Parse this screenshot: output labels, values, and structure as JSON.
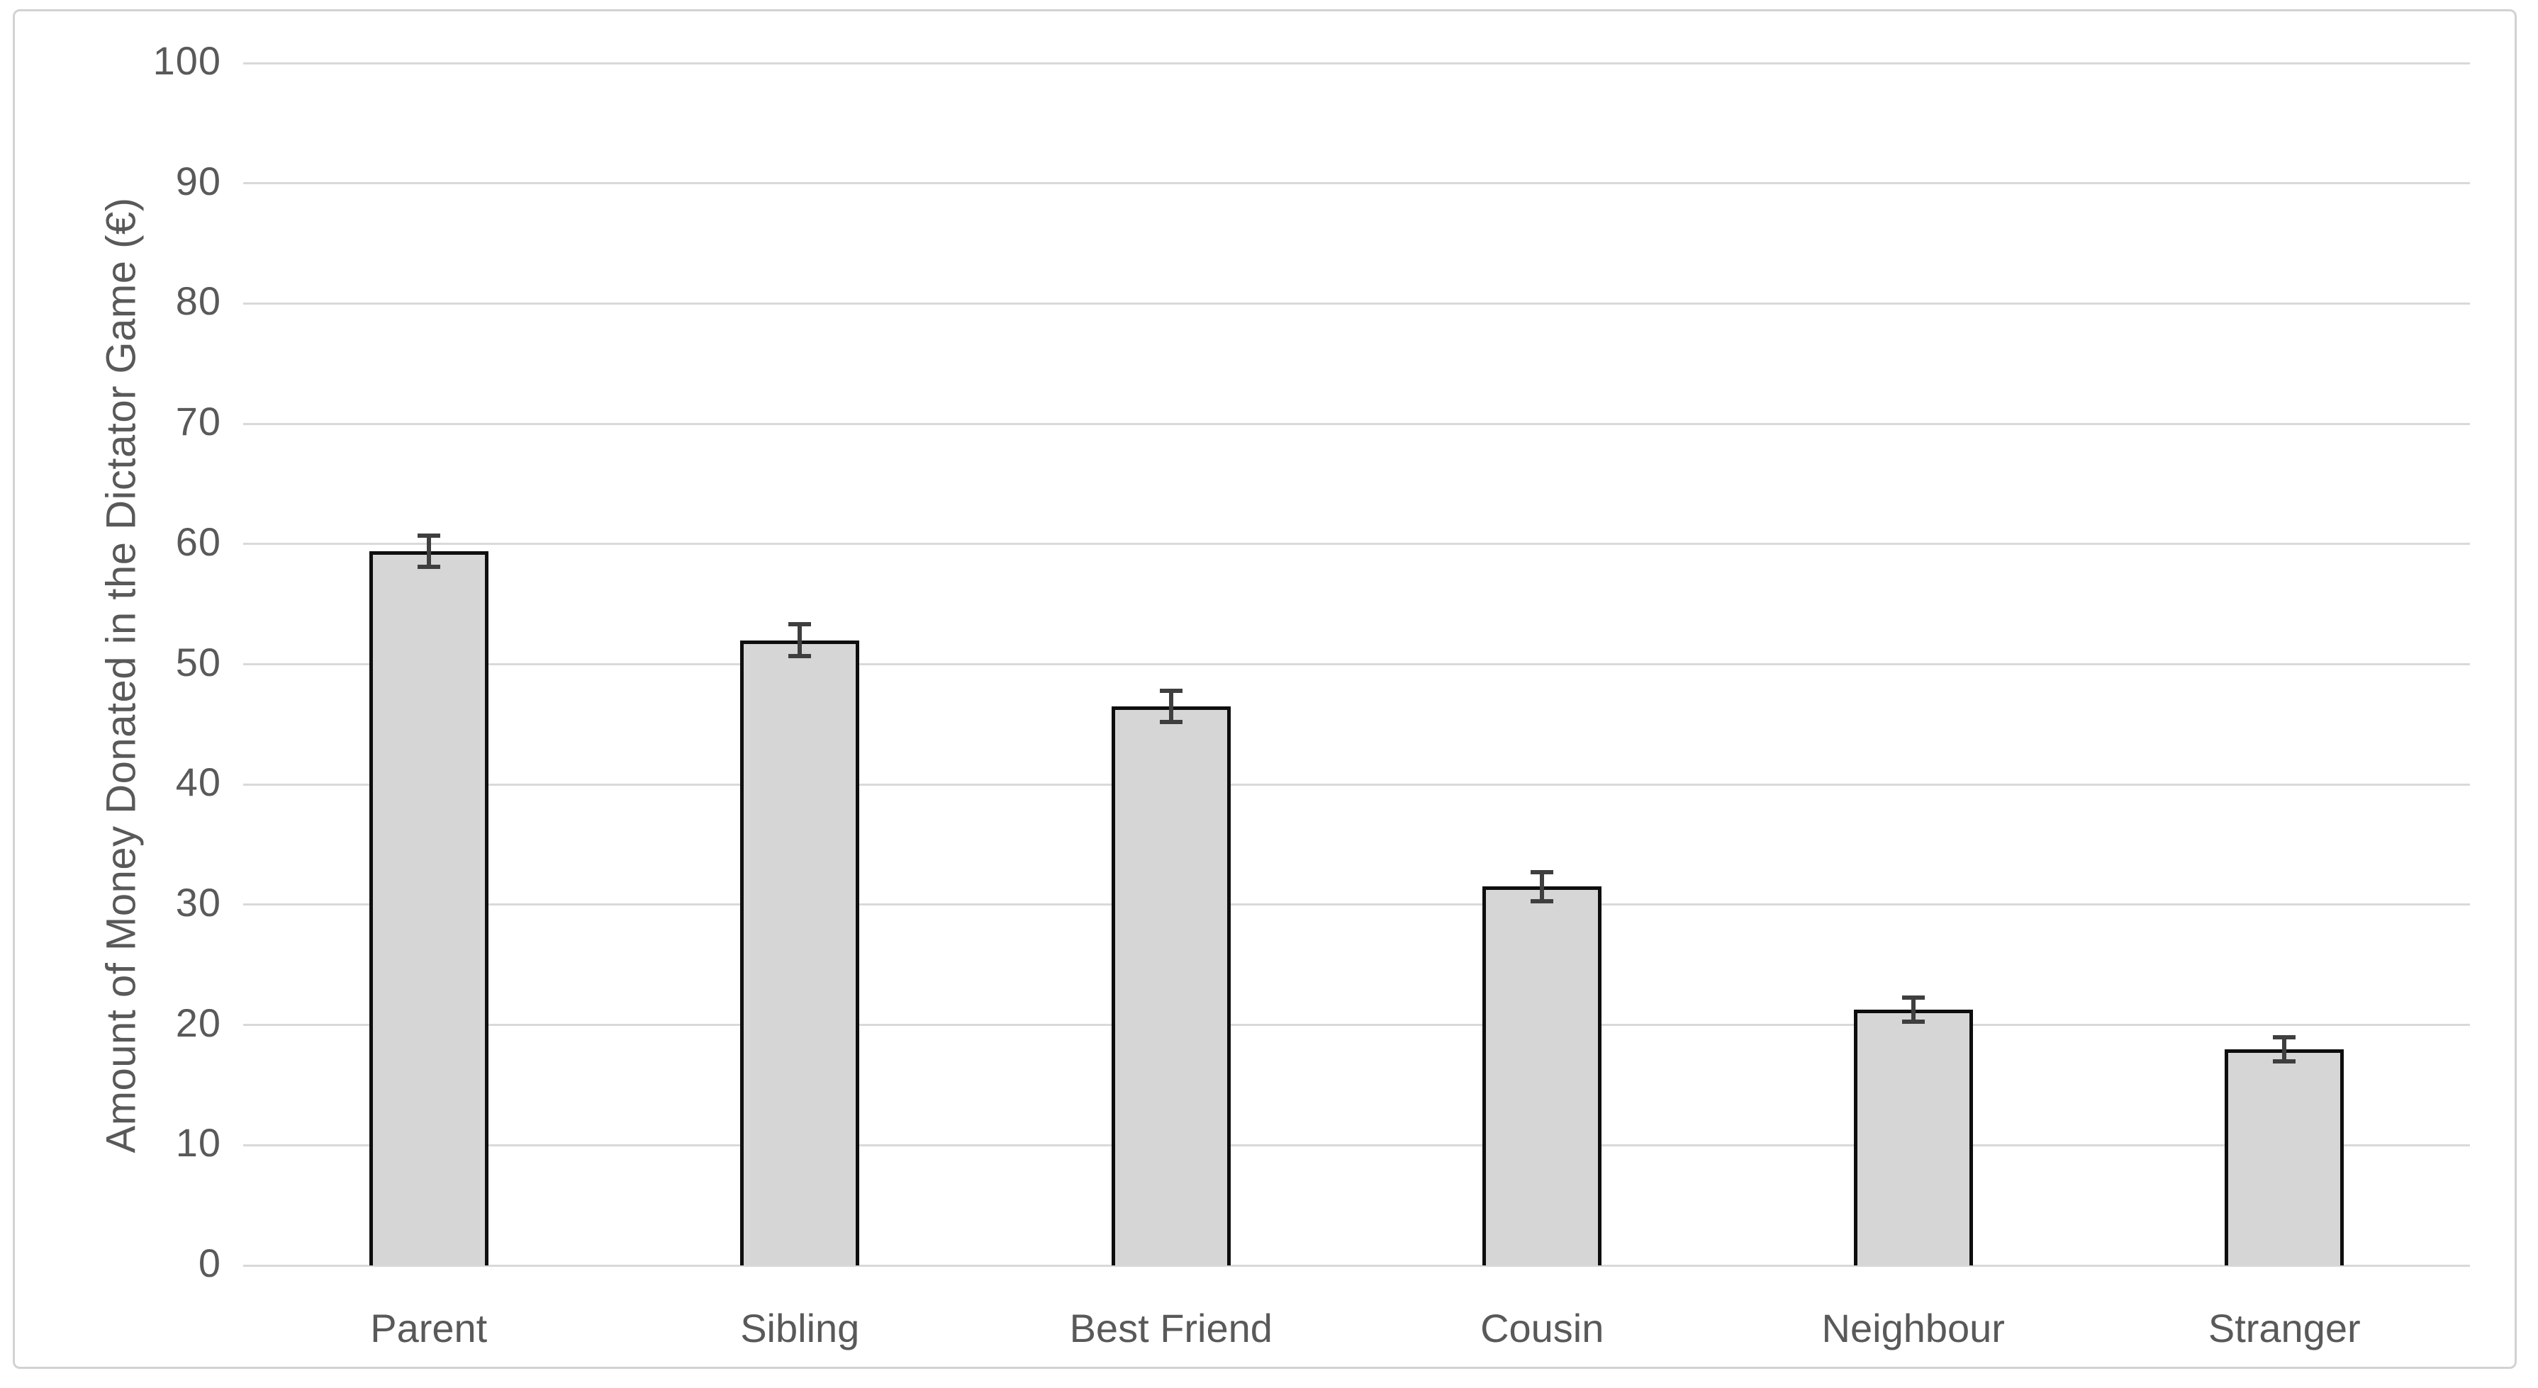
{
  "chart_data": {
    "type": "bar",
    "title": "",
    "categories": [
      "Parent",
      "Sibling",
      "Best Friend",
      "Cousin",
      "Neighbour",
      "Stranger"
    ],
    "values": [
      59.4,
      52.0,
      46.5,
      31.5,
      21.3,
      18.0
    ],
    "error_bars": [
      1.3,
      1.3,
      1.3,
      1.2,
      1.0,
      1.0
    ],
    "xlabel": "",
    "ylabel": "Amount of Money Donated in the Dictator Game (€)",
    "ylim": [
      0,
      100
    ],
    "ytick_step": 10,
    "ytick_labels": [
      "0",
      "10",
      "20",
      "30",
      "40",
      "50",
      "60",
      "70",
      "80",
      "90",
      "100"
    ],
    "grid": "horizontal-only",
    "legend": "none",
    "colors": {
      "bar_fill": "#d6d6d6",
      "bar_border": "#0e0e0e",
      "error_bar": "#3f3f3f",
      "gridline": "#d9d9d9",
      "axis_text": "#595959",
      "frame_border": "#d2d2d2",
      "background": "#ffffff"
    }
  }
}
